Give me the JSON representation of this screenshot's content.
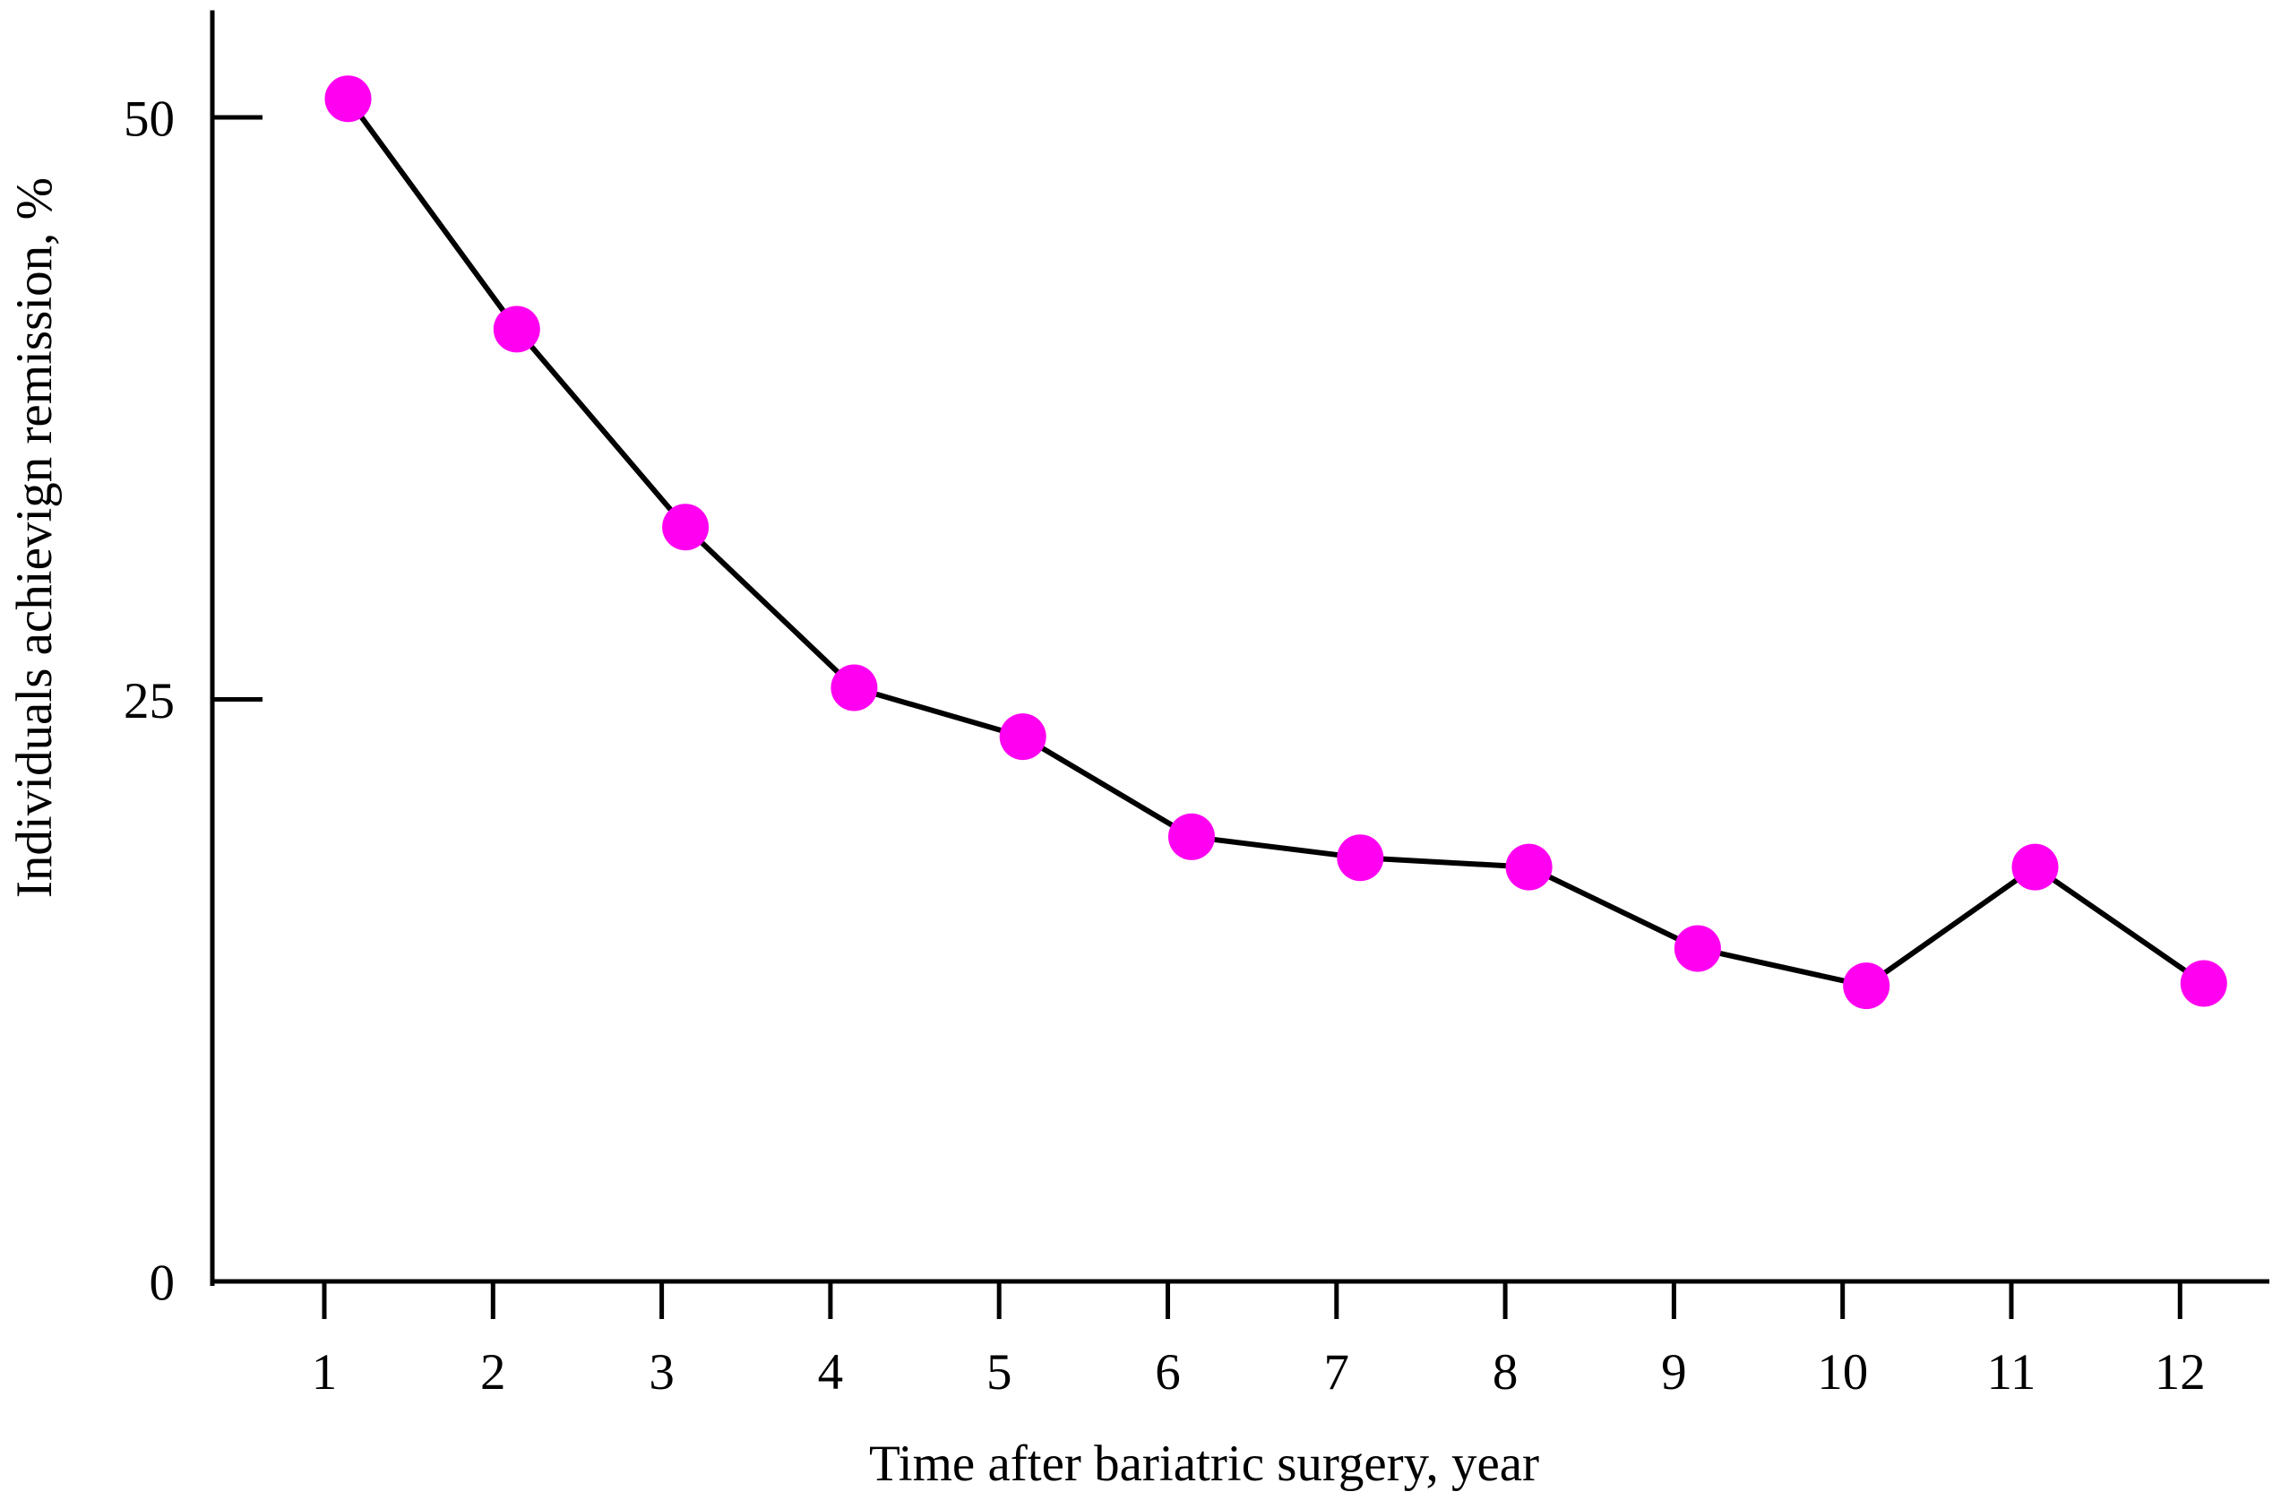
{
  "chart_data": {
    "type": "line",
    "xlabel": "Time after bariatric surgery, year",
    "ylabel": "Individuals achievign remission, %",
    "x": [
      1,
      2,
      3,
      4,
      5,
      6,
      7,
      8,
      9,
      10,
      11,
      12
    ],
    "x_tick_labels": [
      "1",
      "2",
      "3",
      "4",
      "5",
      "6",
      "7",
      "8",
      "9",
      "10",
      "11",
      "12"
    ],
    "values": [
      50.8,
      40.9,
      32.4,
      25.5,
      23.4,
      19.1,
      18.2,
      17.8,
      14.3,
      12.7,
      17.8,
      12.8
    ],
    "y_ticks": [
      0,
      25,
      50
    ],
    "y_tick_labels": [
      "0",
      "25",
      "50"
    ],
    "ylim": [
      0,
      54.5
    ],
    "xlim": [
      0.34,
      12.55
    ],
    "grid": false,
    "legend_position": "none",
    "marker": "circle",
    "marker_color": "#FF00F0",
    "line_color": "#000000",
    "axis_color": "#000000"
  }
}
